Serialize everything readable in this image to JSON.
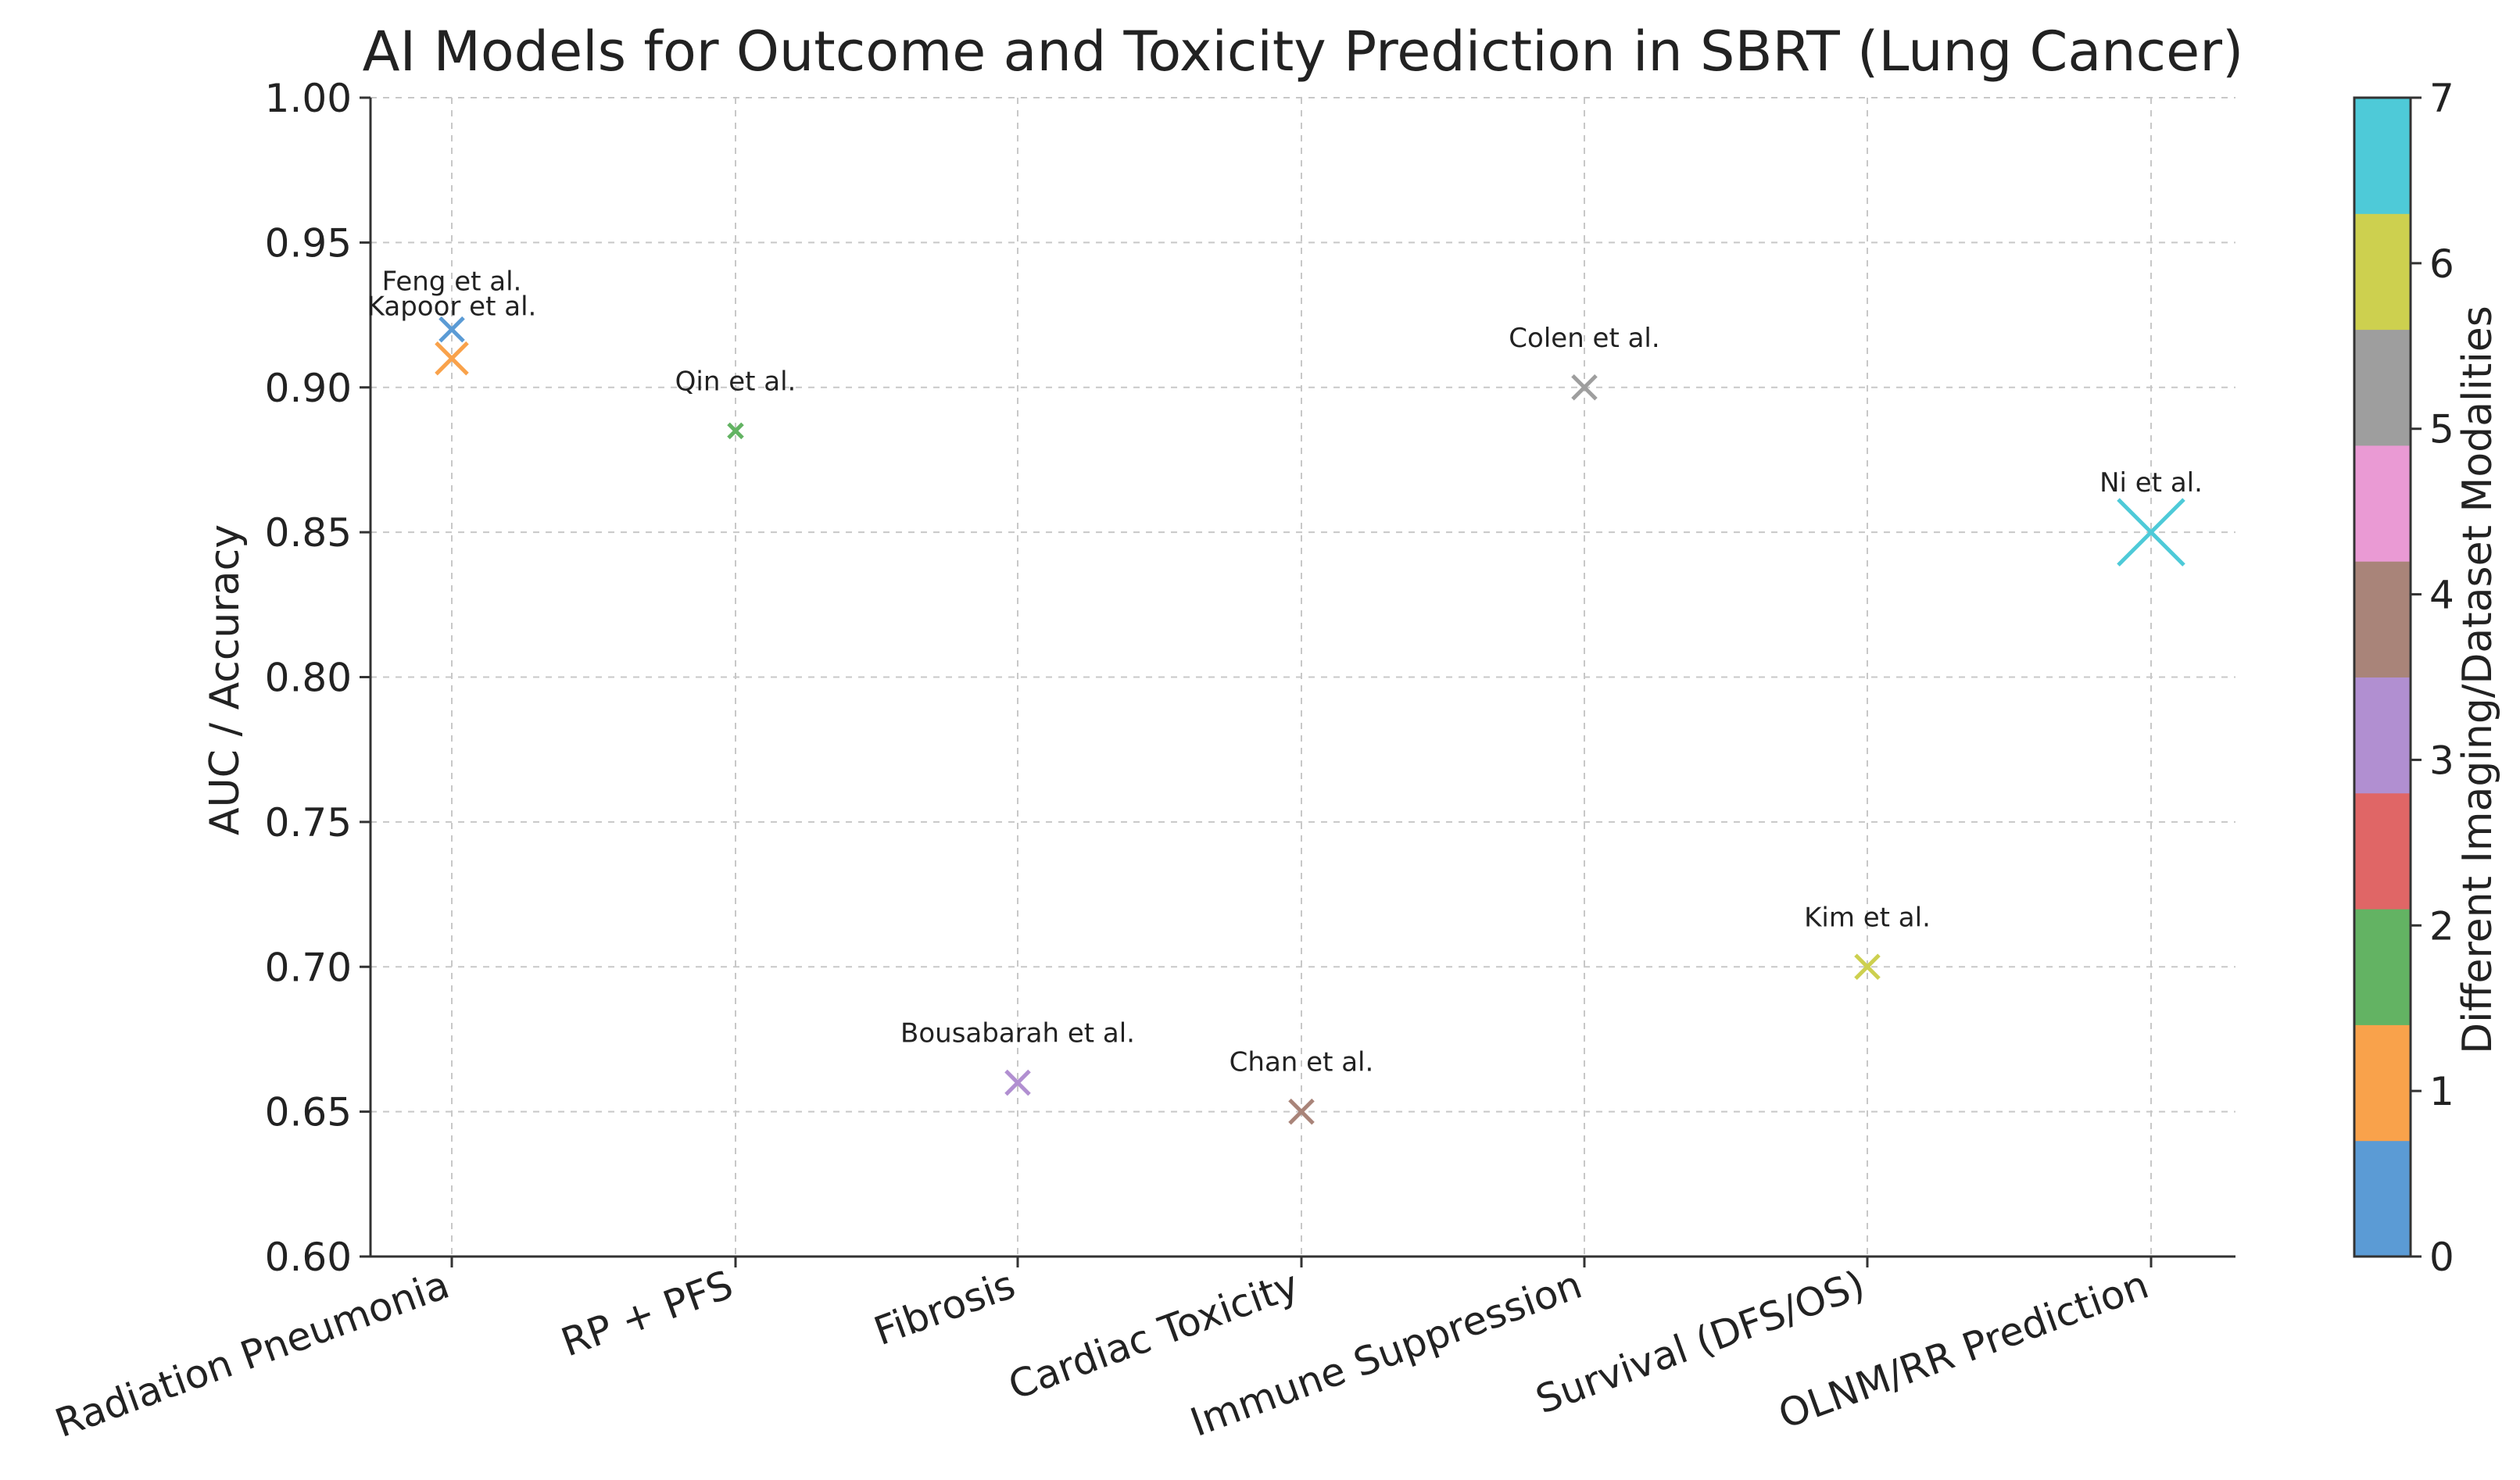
{
  "chart_data": {
    "type": "scatter",
    "title": "AI Models for Outcome and Toxicity Prediction in SBRT (Lung Cancer)",
    "xlabel": "",
    "ylabel": "AUC / Accuracy",
    "categories": [
      "Radiation Pneumonia",
      "RP + PFS",
      "Fibrosis",
      "Cardiac Toxicity",
      "Immune Suppression",
      "Survival (DFS/OS)",
      "OLNM/RR Prediction"
    ],
    "ylim": [
      0.6,
      1.0
    ],
    "yticks": [
      "0.60",
      "0.65",
      "0.70",
      "0.75",
      "0.80",
      "0.85",
      "0.90",
      "0.95",
      "1.00"
    ],
    "grid": true,
    "marker": "x",
    "points": [
      {
        "label": "Feng et al.",
        "category_index": 0,
        "y": 0.92,
        "modality": 0,
        "color": "#5b9bd5",
        "size": "medium"
      },
      {
        "label": "Kapoor et al.",
        "category_index": 0,
        "y": 0.91,
        "modality": 1,
        "color": "#f9a24b",
        "size": "large"
      },
      {
        "label": "Qin et al.",
        "category_index": 1,
        "y": 0.885,
        "modality": 2,
        "color": "#63b363",
        "size": "small"
      },
      {
        "label": "Bousabarah et al.",
        "category_index": 2,
        "y": 0.66,
        "modality": 3,
        "color": "#b18fd1",
        "size": "medium"
      },
      {
        "label": "Chan et al.",
        "category_index": 3,
        "y": 0.65,
        "modality": 4,
        "color": "#a98479",
        "size": "medium"
      },
      {
        "label": "Colen et al.",
        "category_index": 4,
        "y": 0.9,
        "modality": 5,
        "color": "#9e9e9e",
        "size": "medium"
      },
      {
        "label": "Kim et al.",
        "category_index": 5,
        "y": 0.7,
        "modality": 6,
        "color": "#cdd04f",
        "size": "medium"
      },
      {
        "label": "Ni et al.",
        "category_index": 6,
        "y": 0.85,
        "modality": 7,
        "color": "#4ecad8",
        "size": "xlarge"
      }
    ],
    "colorbar": {
      "label": "Different Imaging/Dataset Modalities",
      "range": [
        0,
        7
      ],
      "ticks": [
        "0",
        "1",
        "2",
        "3",
        "4",
        "5",
        "6",
        "7"
      ],
      "colors": [
        "#5b9bd5",
        "#f9a24b",
        "#63b363",
        "#e06666",
        "#b18fd1",
        "#a98479",
        "#ea9ad4",
        "#9e9e9e",
        "#cdd04f",
        "#4ecad8"
      ]
    }
  }
}
